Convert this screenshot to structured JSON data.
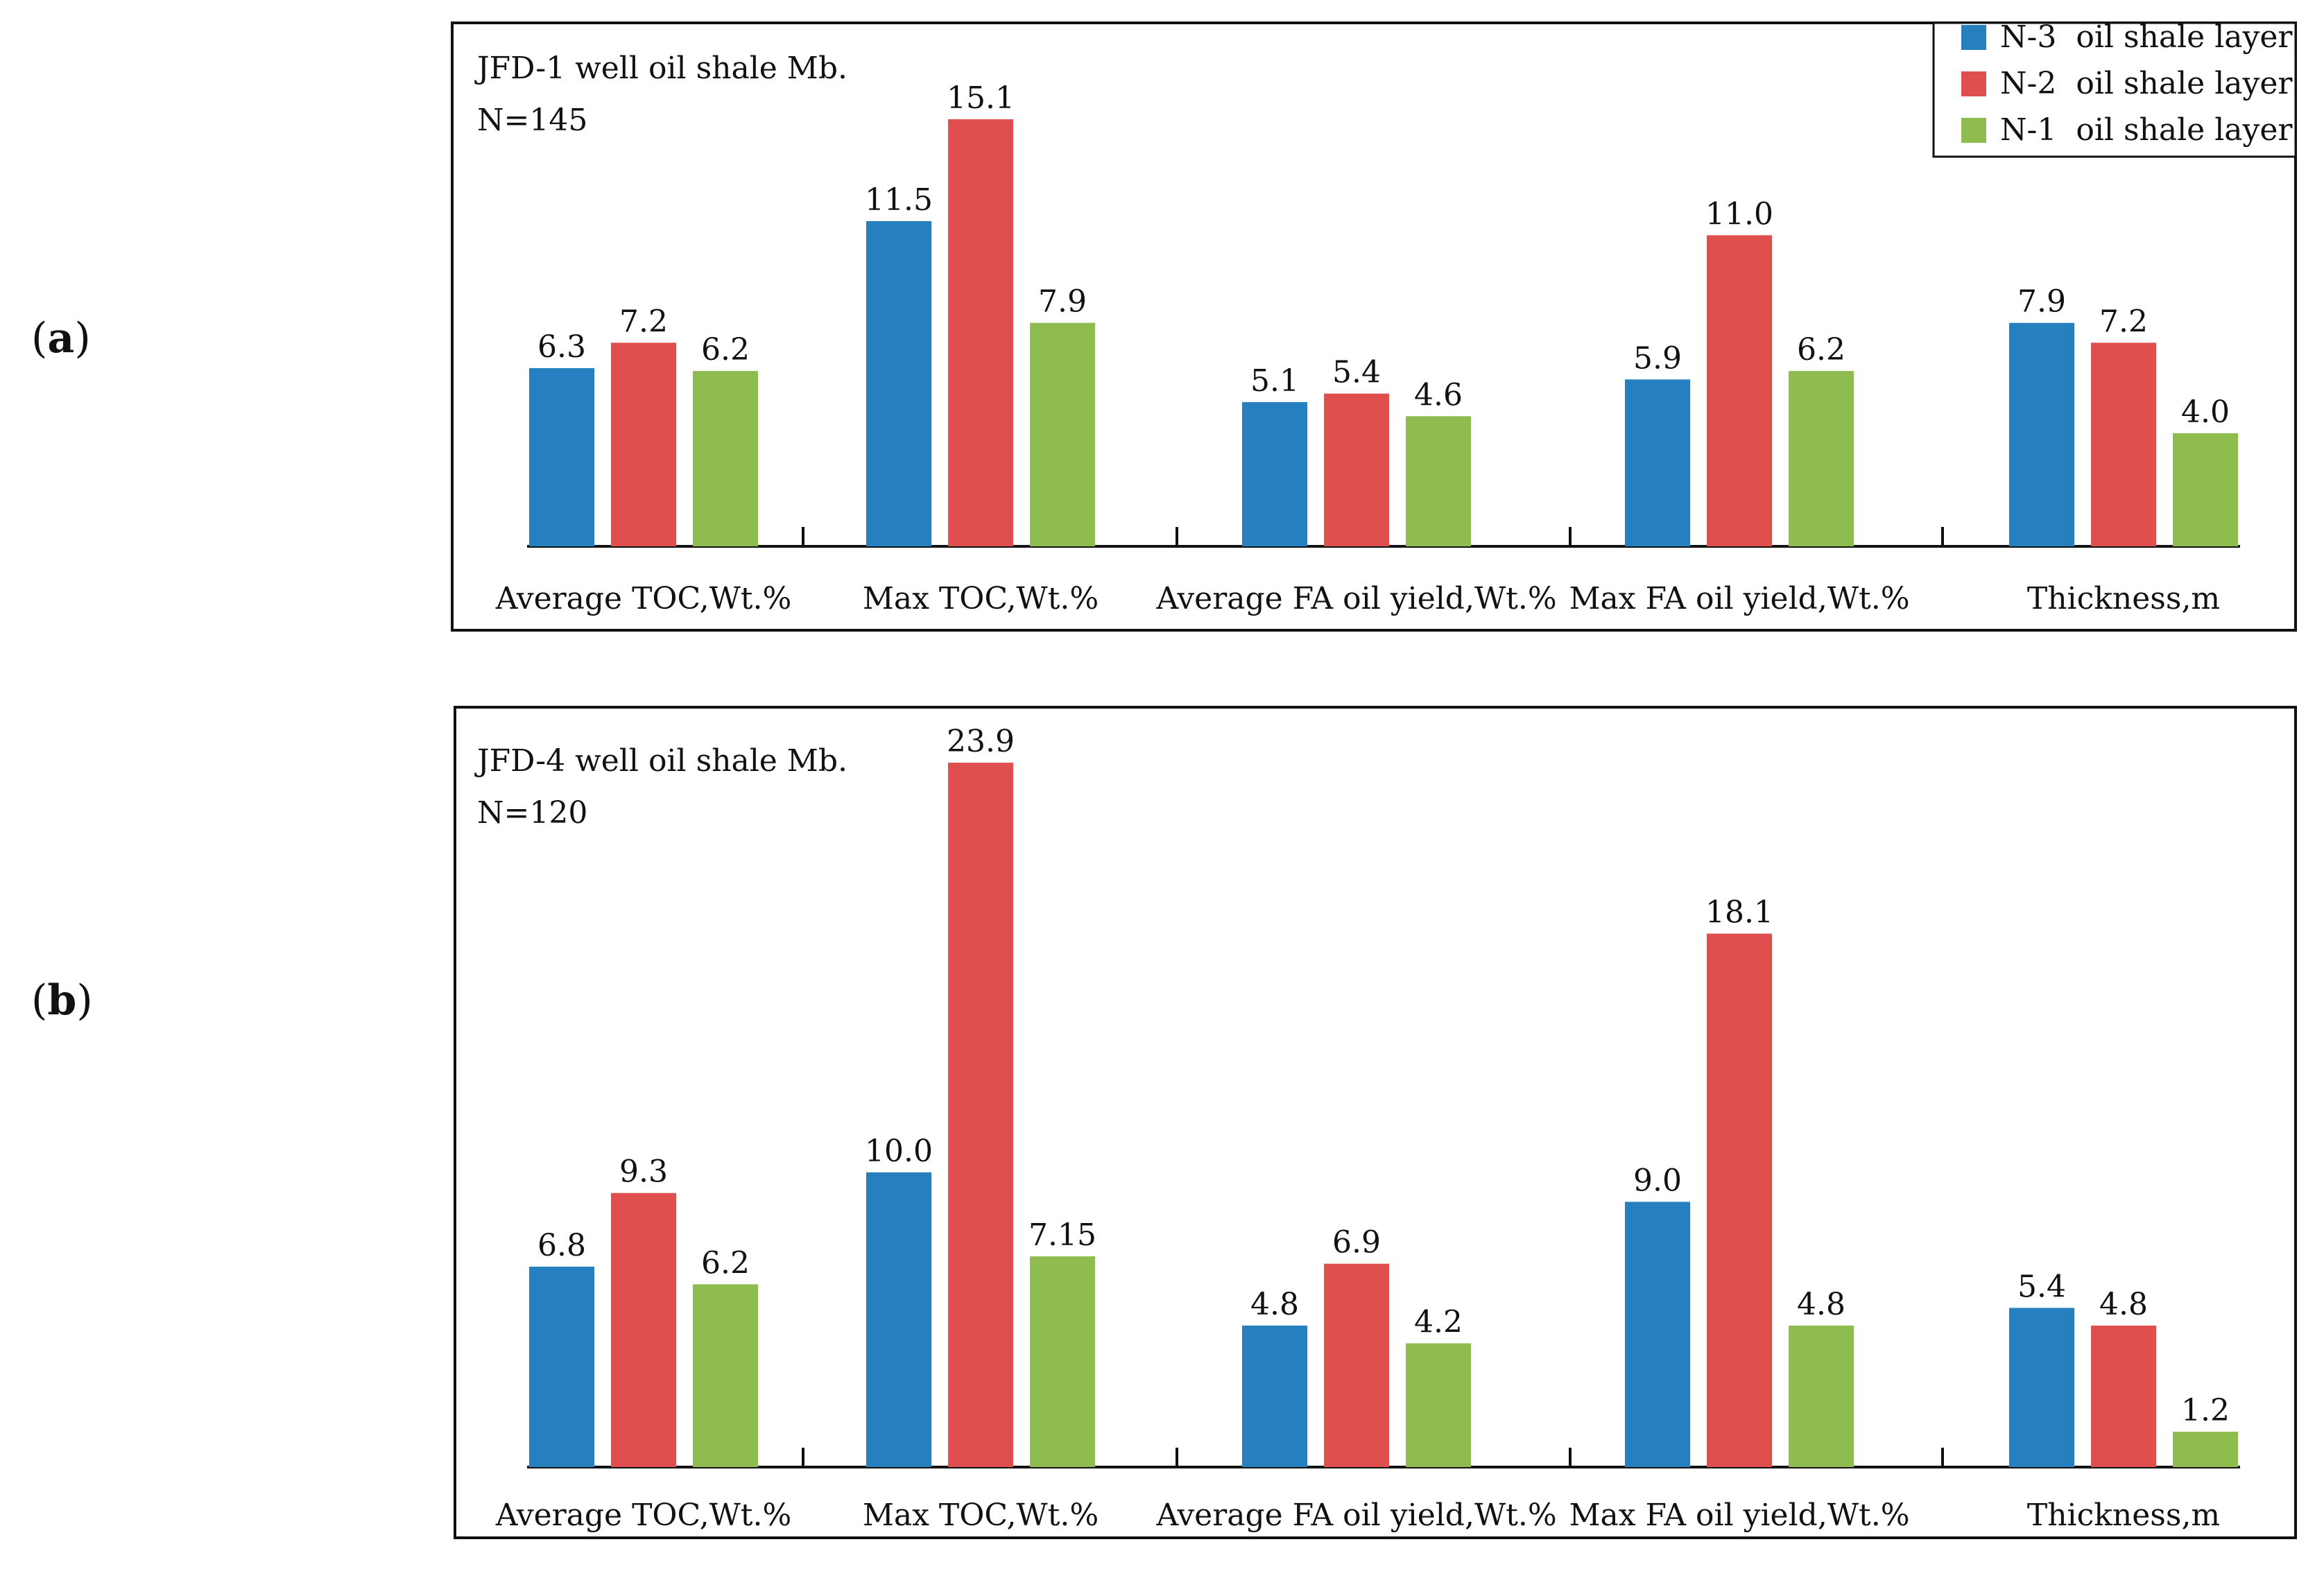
{
  "chart_data": [
    {
      "panel_label": "(a)",
      "type": "bar",
      "title": "JFD-1 well oil shale Mb.",
      "subtitle": "N=145",
      "categories": [
        "Average TOC,Wt.%",
        "Max TOC,Wt.%",
        "Average FA oil yield,Wt.%",
        "Max FA oil yield,Wt.%",
        "Thickness,m"
      ],
      "series": [
        {
          "name": "N-3  oil shale layer",
          "color": "#2680C0",
          "values": [
            6.3,
            11.5,
            5.1,
            5.9,
            7.9
          ],
          "labels": [
            "6.3",
            "11.5",
            "5.1",
            "5.9",
            "7.9"
          ]
        },
        {
          "name": "N-2  oil shale layer",
          "color": "#DE4F4E",
          "values": [
            7.2,
            15.1,
            5.4,
            11.0,
            7.2
          ],
          "labels": [
            "7.2",
            "15.1",
            "5.4",
            "11.0",
            "7.2"
          ]
        },
        {
          "name": "N-1  oil shale layer",
          "color": "#8FBC4F",
          "values": [
            6.2,
            7.9,
            4.6,
            6.2,
            4.0
          ],
          "labels": [
            "6.2",
            "7.9",
            "4.6",
            "6.2",
            "4.0"
          ]
        }
      ],
      "ylim": [
        0,
        16
      ],
      "legend": "top-right",
      "grid": false
    },
    {
      "panel_label": "(b)",
      "type": "bar",
      "title": "JFD-4 well oil shale Mb.",
      "subtitle": "N=120",
      "categories": [
        "Average TOC,Wt.%",
        "Max TOC,Wt.%",
        "Average FA oil yield,Wt.%",
        "Max FA oil yield,Wt.%",
        "Thickness,m"
      ],
      "series": [
        {
          "name": "N-3  oil shale layer",
          "color": "#2680C0",
          "values": [
            6.8,
            10.0,
            4.8,
            9.0,
            5.4
          ],
          "labels": [
            "6.8",
            "10.0",
            "4.8",
            "9.0",
            "5.4"
          ]
        },
        {
          "name": "N-2  oil shale layer",
          "color": "#DE4F4E",
          "values": [
            9.3,
            23.9,
            6.9,
            18.1,
            4.8
          ],
          "labels": [
            "9.3",
            "23.9",
            "6.9",
            "18.1",
            "4.8"
          ]
        },
        {
          "name": "N-1  oil shale layer",
          "color": "#8FBC4F",
          "values": [
            6.2,
            7.15,
            4.2,
            4.8,
            1.2
          ],
          "labels": [
            "6.2",
            "7.15",
            "4.2",
            "4.8",
            "1.2"
          ]
        }
      ],
      "ylim": [
        0,
        24
      ],
      "legend": "none",
      "grid": false
    }
  ]
}
